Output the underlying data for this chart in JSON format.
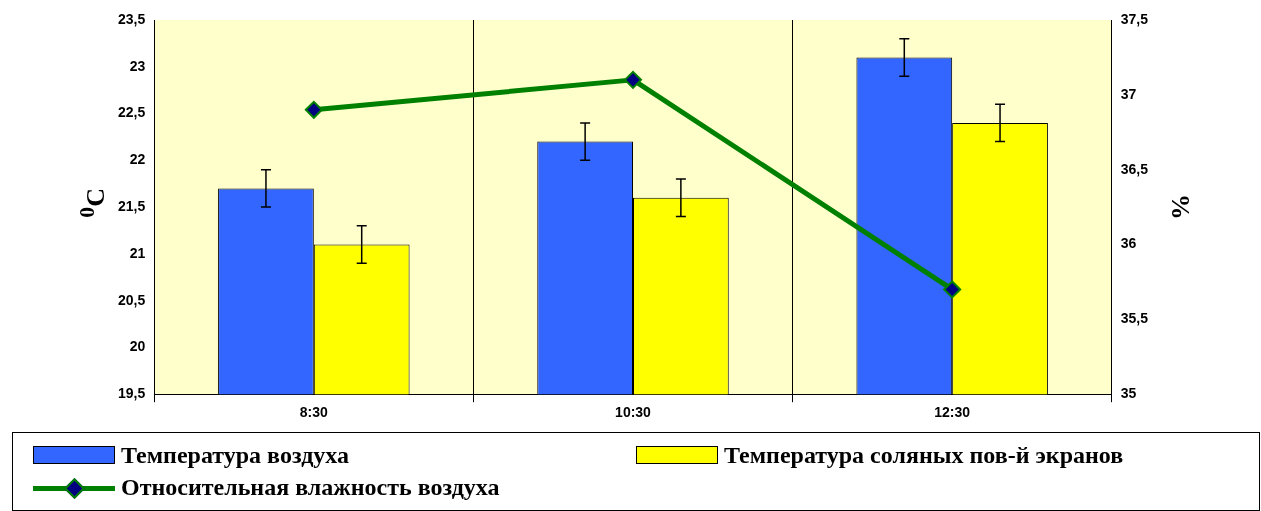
{
  "chart_data": {
    "type": "bar",
    "categories": [
      "8:30",
      "10:30",
      "12:30"
    ],
    "ylabel": "$^{0}$C",
    "y2label": "%",
    "ylim": [
      19.5,
      23.5
    ],
    "yticks": [
      {
        "value": 19.5,
        "label": "19,5"
      },
      20,
      {
        "value": 20.5,
        "label": "20,5"
      },
      21,
      {
        "value": 21.5,
        "label": "21,5"
      },
      22,
      {
        "value": 22.5,
        "label": "22,5"
      },
      23,
      {
        "value": 23.5,
        "label": "23,5"
      }
    ],
    "y2lim": [
      35,
      37.5
    ],
    "y2ticks": [
      35,
      {
        "value": 35.5,
        "label": "35,5"
      },
      36,
      {
        "value": 36.5,
        "label": "36,5"
      },
      37,
      {
        "value": 37.5,
        "label": "37,5"
      }
    ],
    "series": [
      {
        "name": "Температура воздуха",
        "color": "#3366ff",
        "values": [
          21.7,
          22.2,
          23.1
        ],
        "errors": [
          0.2,
          0.2,
          0.2
        ]
      },
      {
        "name": "Температура соляных пов-й экранов",
        "color": "#ffff00",
        "values": [
          21.1,
          21.6,
          22.4
        ],
        "errors": [
          0.2,
          0.2,
          0.2
        ]
      },
      {
        "name": "Относительная влажность воздуха",
        "type": "line",
        "axis": "y2",
        "color": "#008000",
        "values": [
          36.9,
          37.1,
          35.7
        ],
        "marker": "diamond"
      }
    ],
    "grid": "x",
    "legend": "bottom"
  }
}
